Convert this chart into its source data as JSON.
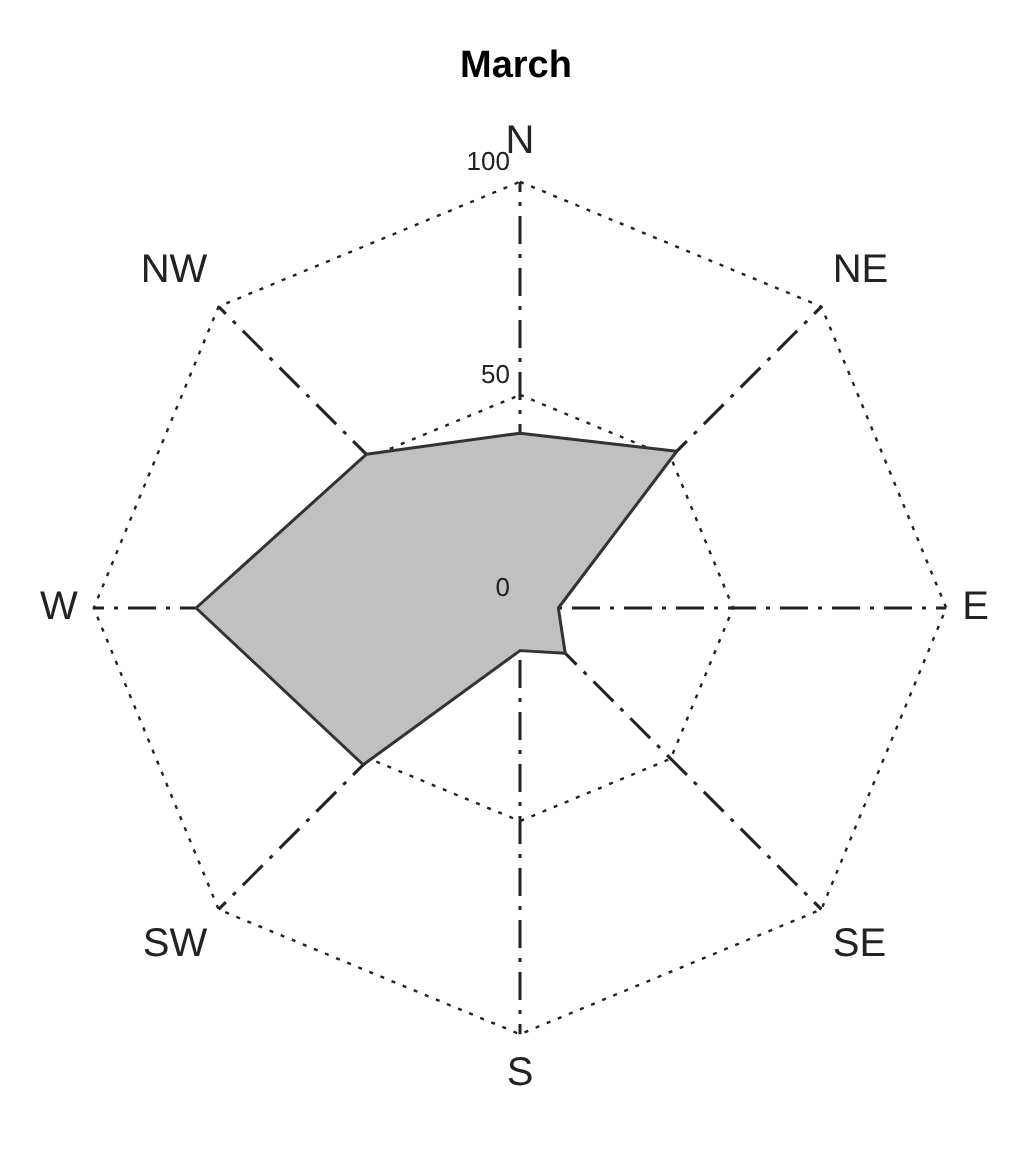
{
  "chart_data": {
    "type": "radar",
    "title": "March",
    "categories": [
      "N",
      "NE",
      "E",
      "SE",
      "S",
      "SW",
      "W",
      "NW"
    ],
    "series": [
      {
        "color": "#c0c0c0",
        "values": [
          41,
          52,
          9,
          15,
          10,
          52,
          76,
          51
        ]
      }
    ],
    "ylim": [
      0,
      100
    ],
    "yticks": [
      0,
      50,
      100
    ],
    "grid": true,
    "legend": false,
    "marker": "none",
    "line_style": "solid"
  }
}
